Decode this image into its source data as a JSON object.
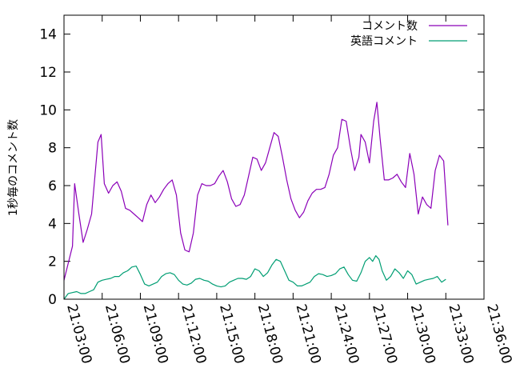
{
  "chart_data": {
    "type": "line",
    "title": "",
    "xlabel": "",
    "ylabel": "1秒毎のコメント数",
    "ylim": [
      0,
      15
    ],
    "y_ticks": [
      0,
      2,
      4,
      6,
      8,
      10,
      12,
      14
    ],
    "xlim": [
      "21:03:00",
      "21:36:00"
    ],
    "x_ticks": [
      "21:03:00",
      "21:06:00",
      "21:09:00",
      "21:12:00",
      "21:15:00",
      "21:18:00",
      "21:21:00",
      "21:24:00",
      "21:27:00",
      "21:30:00",
      "21:33:00",
      "21:36:00"
    ],
    "grid": false,
    "legend_position": "top-right",
    "series": [
      {
        "name": "コメント数",
        "color": "#8b00b8",
        "points": [
          [
            "21:03:00",
            1.0
          ],
          [
            "21:03:20",
            1.9
          ],
          [
            "21:03:40",
            2.8
          ],
          [
            "21:03:50",
            6.1
          ],
          [
            "21:04:10",
            4.5
          ],
          [
            "21:04:30",
            3.0
          ],
          [
            "21:04:50",
            3.7
          ],
          [
            "21:05:10",
            4.5
          ],
          [
            "21:05:40",
            8.3
          ],
          [
            "21:05:55",
            8.7
          ],
          [
            "21:06:10",
            6.1
          ],
          [
            "21:06:30",
            5.6
          ],
          [
            "21:06:50",
            6.0
          ],
          [
            "21:07:10",
            6.2
          ],
          [
            "21:07:30",
            5.7
          ],
          [
            "21:07:50",
            4.8
          ],
          [
            "21:08:10",
            4.7
          ],
          [
            "21:08:30",
            4.5
          ],
          [
            "21:08:50",
            4.3
          ],
          [
            "21:09:10",
            4.1
          ],
          [
            "21:09:30",
            5.0
          ],
          [
            "21:09:50",
            5.5
          ],
          [
            "21:10:10",
            5.1
          ],
          [
            "21:10:30",
            5.4
          ],
          [
            "21:10:50",
            5.8
          ],
          [
            "21:11:10",
            6.1
          ],
          [
            "21:11:30",
            6.3
          ],
          [
            "21:11:50",
            5.5
          ],
          [
            "21:12:10",
            3.5
          ],
          [
            "21:12:30",
            2.6
          ],
          [
            "21:12:50",
            2.5
          ],
          [
            "21:13:10",
            3.5
          ],
          [
            "21:13:30",
            5.5
          ],
          [
            "21:13:50",
            6.1
          ],
          [
            "21:14:10",
            6.0
          ],
          [
            "21:14:30",
            6.0
          ],
          [
            "21:14:50",
            6.1
          ],
          [
            "21:15:10",
            6.5
          ],
          [
            "21:15:30",
            6.8
          ],
          [
            "21:15:50",
            6.2
          ],
          [
            "21:16:10",
            5.3
          ],
          [
            "21:16:30",
            4.9
          ],
          [
            "21:16:50",
            5.0
          ],
          [
            "21:17:10",
            5.5
          ],
          [
            "21:17:30",
            6.5
          ],
          [
            "21:17:50",
            7.5
          ],
          [
            "21:18:10",
            7.4
          ],
          [
            "21:18:30",
            6.8
          ],
          [
            "21:18:50",
            7.2
          ],
          [
            "21:19:10",
            8.0
          ],
          [
            "21:19:30",
            8.8
          ],
          [
            "21:19:50",
            8.6
          ],
          [
            "21:20:10",
            7.5
          ],
          [
            "21:20:30",
            6.3
          ],
          [
            "21:20:50",
            5.3
          ],
          [
            "21:21:10",
            4.7
          ],
          [
            "21:21:30",
            4.3
          ],
          [
            "21:21:50",
            4.6
          ],
          [
            "21:22:10",
            5.2
          ],
          [
            "21:22:30",
            5.6
          ],
          [
            "21:22:50",
            5.8
          ],
          [
            "21:23:10",
            5.8
          ],
          [
            "21:23:30",
            5.9
          ],
          [
            "21:23:50",
            6.6
          ],
          [
            "21:24:10",
            7.6
          ],
          [
            "21:24:30",
            8.0
          ],
          [
            "21:24:50",
            9.5
          ],
          [
            "21:25:10",
            9.4
          ],
          [
            "21:25:30",
            8.0
          ],
          [
            "21:25:50",
            6.8
          ],
          [
            "21:26:10",
            7.5
          ],
          [
            "21:26:20",
            8.7
          ],
          [
            "21:26:40",
            8.3
          ],
          [
            "21:27:00",
            7.2
          ],
          [
            "21:27:20",
            9.4
          ],
          [
            "21:27:35",
            10.4
          ],
          [
            "21:27:50",
            8.5
          ],
          [
            "21:28:10",
            6.3
          ],
          [
            "21:28:30",
            6.3
          ],
          [
            "21:28:50",
            6.4
          ],
          [
            "21:29:10",
            6.6
          ],
          [
            "21:29:30",
            6.2
          ],
          [
            "21:29:50",
            5.9
          ],
          [
            "21:30:10",
            7.7
          ],
          [
            "21:30:30",
            6.6
          ],
          [
            "21:30:50",
            4.5
          ],
          [
            "21:31:10",
            5.4
          ],
          [
            "21:31:30",
            5.0
          ],
          [
            "21:31:50",
            4.8
          ],
          [
            "21:32:10",
            6.8
          ],
          [
            "21:32:30",
            7.6
          ],
          [
            "21:32:50",
            7.3
          ],
          [
            "21:33:10",
            3.9
          ]
        ]
      },
      {
        "name": "英語コメント",
        "color": "#009e73",
        "points": [
          [
            "21:03:00",
            0.0
          ],
          [
            "21:03:20",
            0.3
          ],
          [
            "21:03:40",
            0.35
          ],
          [
            "21:04:00",
            0.4
          ],
          [
            "21:04:20",
            0.3
          ],
          [
            "21:04:40",
            0.3
          ],
          [
            "21:05:00",
            0.4
          ],
          [
            "21:05:20",
            0.5
          ],
          [
            "21:05:40",
            0.9
          ],
          [
            "21:06:00",
            1.0
          ],
          [
            "21:06:20",
            1.05
          ],
          [
            "21:06:40",
            1.1
          ],
          [
            "21:07:00",
            1.2
          ],
          [
            "21:07:20",
            1.2
          ],
          [
            "21:07:40",
            1.4
          ],
          [
            "21:08:00",
            1.5
          ],
          [
            "21:08:20",
            1.7
          ],
          [
            "21:08:40",
            1.75
          ],
          [
            "21:09:00",
            1.3
          ],
          [
            "21:09:20",
            0.8
          ],
          [
            "21:09:40",
            0.7
          ],
          [
            "21:10:00",
            0.8
          ],
          [
            "21:10:20",
            0.9
          ],
          [
            "21:10:40",
            1.2
          ],
          [
            "21:11:00",
            1.35
          ],
          [
            "21:11:20",
            1.4
          ],
          [
            "21:11:40",
            1.3
          ],
          [
            "21:12:00",
            1.0
          ],
          [
            "21:12:20",
            0.8
          ],
          [
            "21:12:40",
            0.75
          ],
          [
            "21:13:00",
            0.85
          ],
          [
            "21:13:20",
            1.05
          ],
          [
            "21:13:40",
            1.1
          ],
          [
            "21:14:00",
            1.0
          ],
          [
            "21:14:20",
            0.95
          ],
          [
            "21:14:40",
            0.8
          ],
          [
            "21:15:00",
            0.7
          ],
          [
            "21:15:20",
            0.65
          ],
          [
            "21:15:40",
            0.7
          ],
          [
            "21:16:00",
            0.9
          ],
          [
            "21:16:20",
            1.0
          ],
          [
            "21:16:40",
            1.1
          ],
          [
            "21:17:00",
            1.1
          ],
          [
            "21:17:20",
            1.05
          ],
          [
            "21:17:40",
            1.2
          ],
          [
            "21:18:00",
            1.6
          ],
          [
            "21:18:20",
            1.5
          ],
          [
            "21:18:40",
            1.2
          ],
          [
            "21:19:00",
            1.4
          ],
          [
            "21:19:20",
            1.8
          ],
          [
            "21:19:40",
            2.1
          ],
          [
            "21:20:00",
            2.0
          ],
          [
            "21:20:20",
            1.5
          ],
          [
            "21:20:40",
            1.0
          ],
          [
            "21:21:00",
            0.9
          ],
          [
            "21:21:20",
            0.7
          ],
          [
            "21:21:40",
            0.7
          ],
          [
            "21:22:00",
            0.8
          ],
          [
            "21:22:20",
            0.9
          ],
          [
            "21:22:40",
            1.2
          ],
          [
            "21:23:00",
            1.35
          ],
          [
            "21:23:20",
            1.3
          ],
          [
            "21:23:40",
            1.2
          ],
          [
            "21:24:00",
            1.25
          ],
          [
            "21:24:20",
            1.35
          ],
          [
            "21:24:40",
            1.6
          ],
          [
            "21:25:00",
            1.7
          ],
          [
            "21:25:20",
            1.3
          ],
          [
            "21:25:40",
            1.0
          ],
          [
            "21:26:00",
            0.95
          ],
          [
            "21:26:20",
            1.4
          ],
          [
            "21:26:40",
            2.0
          ],
          [
            "21:27:00",
            2.2
          ],
          [
            "21:27:15",
            2.0
          ],
          [
            "21:27:30",
            2.3
          ],
          [
            "21:27:45",
            2.1
          ],
          [
            "21:28:00",
            1.5
          ],
          [
            "21:28:20",
            1.0
          ],
          [
            "21:28:40",
            1.2
          ],
          [
            "21:29:00",
            1.6
          ],
          [
            "21:29:20",
            1.4
          ],
          [
            "21:29:40",
            1.1
          ],
          [
            "21:30:00",
            1.5
          ],
          [
            "21:30:20",
            1.3
          ],
          [
            "21:30:40",
            0.8
          ],
          [
            "21:31:00",
            0.9
          ],
          [
            "21:31:20",
            1.0
          ],
          [
            "21:31:40",
            1.05
          ],
          [
            "21:32:00",
            1.1
          ],
          [
            "21:32:20",
            1.2
          ],
          [
            "21:32:40",
            0.9
          ],
          [
            "21:33:00",
            1.05
          ]
        ]
      }
    ]
  }
}
